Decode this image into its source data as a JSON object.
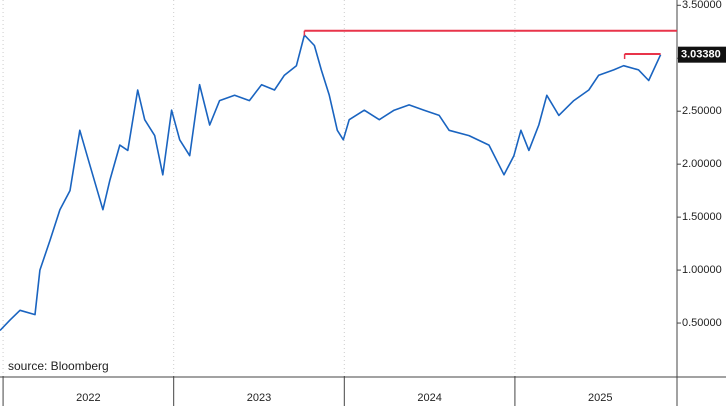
{
  "chart_data": {
    "type": "line",
    "source": "source: Bloomberg",
    "x": [
      2021.982,
      2022.041,
      2022.099,
      2022.187,
      2022.216,
      2022.275,
      2022.333,
      2022.392,
      2022.45,
      2022.509,
      2022.585,
      2022.626,
      2022.684,
      2022.731,
      2022.789,
      2022.83,
      2022.889,
      2022.936,
      2022.988,
      2023.035,
      2023.094,
      2023.152,
      2023.211,
      2023.269,
      2023.357,
      2023.444,
      2023.515,
      2023.591,
      2023.649,
      2023.719,
      2023.766,
      2023.825,
      2023.865,
      2023.912,
      2023.959,
      2023.994,
      2024.029,
      2024.117,
      2024.205,
      2024.292,
      2024.38,
      2024.468,
      2024.556,
      2024.614,
      2024.731,
      2024.848,
      2024.936,
      2024.994,
      2025.035,
      2025.082,
      2025.14,
      2025.187,
      2025.257,
      2025.345,
      2025.433,
      2025.491,
      2025.579,
      2025.637,
      2025.725,
      2025.784,
      2025.854
    ],
    "series": [
      {
        "color": "#1a64c0",
        "values": [
          0.43,
          0.53,
          0.62,
          0.58,
          1.0,
          1.28,
          1.57,
          1.75,
          2.32,
          1.99,
          1.57,
          1.85,
          2.18,
          2.13,
          2.7,
          2.42,
          2.27,
          1.9,
          2.51,
          2.23,
          2.08,
          2.75,
          2.37,
          2.6,
          2.65,
          2.6,
          2.75,
          2.7,
          2.84,
          2.93,
          3.22,
          3.12,
          2.89,
          2.65,
          2.32,
          2.23,
          2.42,
          2.51,
          2.42,
          2.51,
          2.56,
          2.51,
          2.46,
          2.32,
          2.27,
          2.18,
          1.9,
          2.08,
          2.32,
          2.13,
          2.37,
          2.65,
          2.46,
          2.6,
          2.7,
          2.84,
          2.89,
          2.93,
          2.89,
          2.79,
          3.0338
        ]
      }
    ],
    "last_value": 3.0338,
    "last_label": "3.03380",
    "reference_lines": [
      {
        "y": 3.26,
        "x": [
          2023.766,
          2025.95
        ],
        "color": "#e8344a"
      },
      {
        "y": 3.04,
        "x": [
          2025.643,
          2025.854
        ],
        "color": "#e8344a"
      }
    ],
    "xlim": [
      2021.982,
      2025.95
    ],
    "xticks": [
      {
        "value": 2022,
        "label": "2022"
      },
      {
        "value": 2023,
        "label": "2023"
      },
      {
        "value": 2024,
        "label": "2024"
      },
      {
        "value": 2025,
        "label": "2025"
      }
    ],
    "ylim": [
      0,
      3.55
    ],
    "yticks": [
      {
        "value": 0.5,
        "label": "0.50000"
      },
      {
        "value": 1,
        "label": "1.00000"
      },
      {
        "value": 1.5,
        "label": "1.50000"
      },
      {
        "value": 2,
        "label": "2.00000"
      },
      {
        "value": 2.5,
        "label": "2.50000"
      },
      {
        "value": 3,
        "label": "3.00000"
      },
      {
        "value": 3.5,
        "label": "3.50000"
      }
    ],
    "grid": true
  }
}
